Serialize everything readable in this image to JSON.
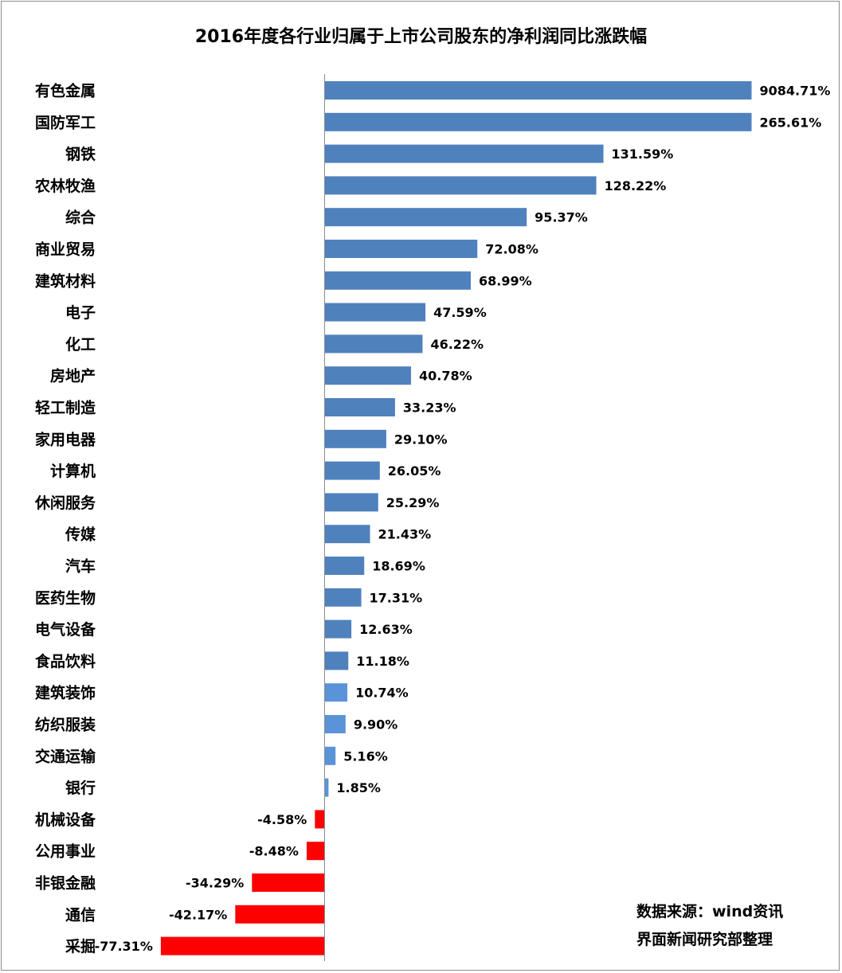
{
  "chart_data": {
    "type": "bar",
    "orientation": "horizontal",
    "title": "2016年度各行业归属于上市公司股东的净利润同比涨跌幅",
    "categories": [
      "有色金属",
      "国防军工",
      "钢铁",
      "农林牧渔",
      "综合",
      "商业贸易",
      "建筑材料",
      "电子",
      "化工",
      "房地产",
      "轻工制造",
      "家用电器",
      "计算机",
      "休闲服务",
      "传媒",
      "汽车",
      "医药生物",
      "电气设备",
      "食品饮料",
      "建筑装饰",
      "纺织服装",
      "交通运输",
      "银行",
      "机械设备",
      "公用事业",
      "非银金融",
      "通信",
      "采掘"
    ],
    "values": [
      9084.71,
      265.61,
      131.59,
      128.22,
      95.37,
      72.08,
      68.99,
      47.59,
      46.22,
      40.78,
      33.23,
      29.1,
      26.05,
      25.29,
      21.43,
      18.69,
      17.31,
      12.63,
      11.18,
      10.74,
      9.9,
      5.16,
      1.85,
      -4.58,
      -8.48,
      -34.29,
      -42.17,
      -77.31
    ],
    "data_labels": [
      "9084.71%",
      "265.61%",
      "131.59%",
      "128.22%",
      "95.37%",
      "72.08%",
      "68.99%",
      "47.59%",
      "46.22%",
      "40.78%",
      "33.23%",
      "29.10%",
      "26.05%",
      "25.29%",
      "21.43%",
      "18.69%",
      "17.31%",
      "12.63%",
      "11.18%",
      "10.74%",
      "9.90%",
      "5.16%",
      "1.85%",
      "-4.58%",
      "-8.48%",
      "-34.29%",
      "-42.17%",
      "-77.31%"
    ],
    "xlabel": "",
    "ylabel": "",
    "value_unit": "%",
    "axis_break": "bars for 有色金属 and 国防军工 are truncated at about 202%",
    "colors": {
      "positive": "#4f81bd",
      "positive_small": "#5b93d8",
      "negative": "#ff0000"
    },
    "grid": false,
    "legend": "none"
  },
  "source": {
    "line1": "数据来源：wind资讯",
    "line2": "界面新闻研究部整理"
  }
}
